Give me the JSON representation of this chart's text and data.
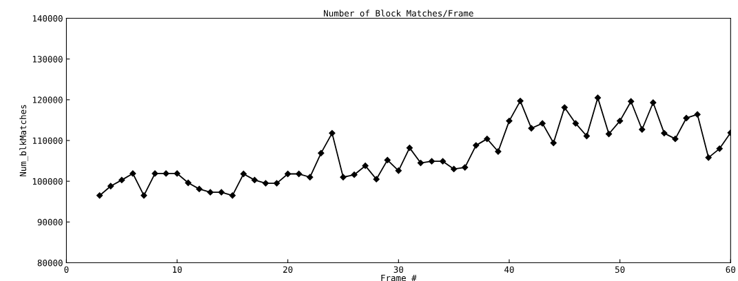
{
  "chart_data": {
    "type": "line",
    "title": "Number of Block Matches/Frame",
    "xlabel": "Frame #",
    "ylabel": "Num_blkMatches",
    "x": [
      3,
      4,
      5,
      6,
      7,
      8,
      9,
      10,
      11,
      12,
      13,
      14,
      15,
      16,
      17,
      18,
      19,
      20,
      21,
      22,
      23,
      24,
      25,
      26,
      27,
      28,
      29,
      30,
      31,
      32,
      33,
      34,
      35,
      36,
      37,
      38,
      39,
      40,
      41,
      42,
      43,
      44,
      45,
      46,
      47,
      48,
      49,
      50,
      51,
      52,
      53,
      54,
      55,
      56,
      57,
      58,
      59,
      60
    ],
    "series": [
      {
        "color": "#000000",
        "values": [
          96500,
          98800,
          100300,
          101900,
          96500,
          101900,
          101900,
          101900,
          99600,
          98100,
          97300,
          97300,
          96500,
          101800,
          100300,
          99500,
          99500,
          101800,
          101800,
          101000,
          106900,
          111800,
          101000,
          101600,
          103800,
          100500,
          105200,
          102600,
          108200,
          104500,
          104900,
          104900,
          103000,
          103400,
          108800,
          110400,
          107300,
          114800,
          119700,
          113000,
          114200,
          109400,
          118100,
          114200,
          111100,
          120500,
          111600,
          114800,
          119600,
          112700,
          119300,
          111800,
          110400,
          115500,
          116400,
          105800,
          108000,
          111900
        ]
      }
    ],
    "xlim": [
      0,
      60
    ],
    "ylim": [
      80000,
      140000
    ],
    "xticks": [
      0,
      10,
      20,
      30,
      40,
      50,
      60
    ],
    "yticks": [
      80000,
      90000,
      100000,
      110000,
      120000,
      130000,
      140000
    ],
    "marker": "diamond",
    "line_style": "solid",
    "grid": false,
    "legend": false
  }
}
